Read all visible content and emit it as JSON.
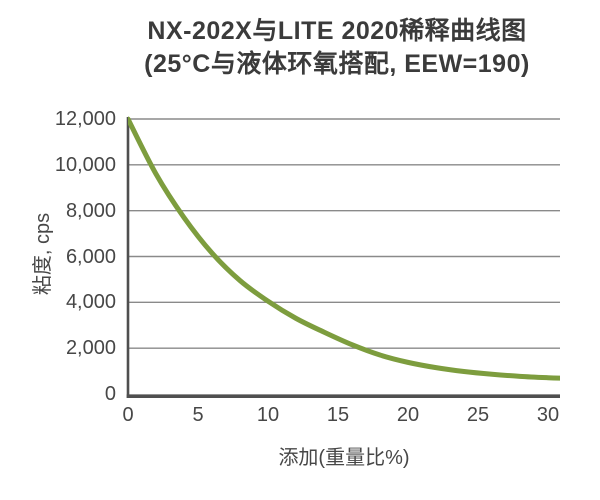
{
  "chart_data": {
    "type": "line",
    "title": "NX-202X与LITE 2020稀释曲线图",
    "subtitle": "(25°C与液体环氧搭配, EEW=190)",
    "xlabel": "添加(重量比%)",
    "ylabel": "粘度, cps",
    "x": [
      0,
      2,
      4,
      6,
      8,
      10,
      12,
      14,
      16,
      18,
      20,
      22,
      24,
      26,
      28,
      30,
      31
    ],
    "values": [
      12000,
      9600,
      7700,
      6150,
      4950,
      4050,
      3300,
      2700,
      2150,
      1700,
      1380,
      1150,
      980,
      860,
      770,
      710,
      690
    ],
    "xlim": [
      0,
      31
    ],
    "ylim": [
      0,
      12000
    ],
    "x_ticks": [
      0,
      5,
      10,
      15,
      20,
      25,
      30
    ],
    "y_ticks": [
      0,
      2000,
      4000,
      6000,
      8000,
      10000,
      12000
    ],
    "y_tick_labels": [
      "0",
      "2,000",
      "4,000",
      "6,000",
      "8,000",
      "10,000",
      "12,000"
    ],
    "grid": "horizontal-only",
    "legend": "none",
    "colors": {
      "line": "#7d9d3e",
      "grid": "#8a8a8a",
      "axis": "#4f4f4f",
      "text": "#474747",
      "title_text": "#3b3b3b",
      "background": "#ffffff"
    }
  }
}
